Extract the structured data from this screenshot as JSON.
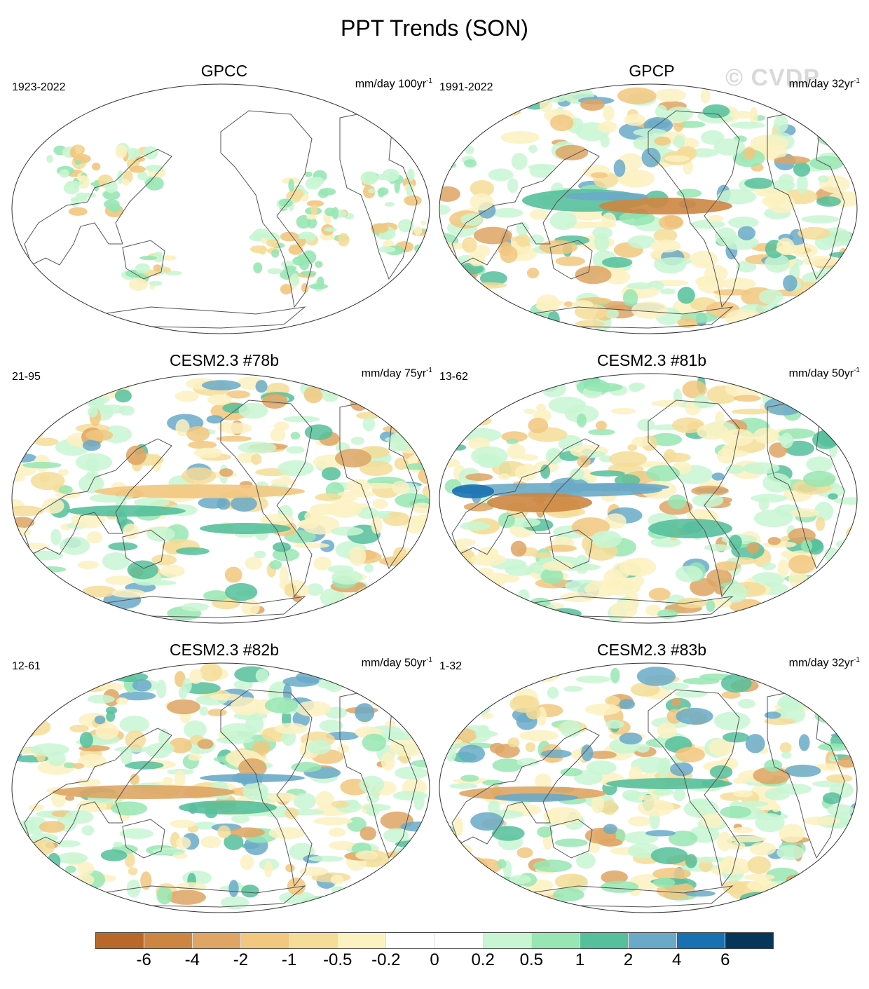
{
  "title": "PPT Trends (SON)",
  "watermark": "© CVDP",
  "panels": [
    {
      "title": "GPCC",
      "period": "1923-2022",
      "units_base": "mm/day 100yr",
      "units_exp": "-1",
      "fill": 0.25,
      "pattern": "obs_land"
    },
    {
      "title": "GPCP",
      "period": "1991-2022",
      "units_base": "mm/day 32yr",
      "units_exp": "-1",
      "fill": 0.9,
      "pattern": "gpcp"
    },
    {
      "title": "CESM2.3 #78b",
      "period": "21-95",
      "units_base": "mm/day 75yr",
      "units_exp": "-1",
      "fill": 0.85,
      "pattern": "model78"
    },
    {
      "title": "CESM2.3 #81b",
      "period": "13-62",
      "units_base": "mm/day 50yr",
      "units_exp": "-1",
      "fill": 0.9,
      "pattern": "model81"
    },
    {
      "title": "CESM2.3 #82b",
      "period": "12-61",
      "units_base": "mm/day 50yr",
      "units_exp": "-1",
      "fill": 0.9,
      "pattern": "model82"
    },
    {
      "title": "CESM2.3 #83b",
      "period": "1-32",
      "units_base": "mm/day 32yr",
      "units_exp": "-1",
      "fill": 0.9,
      "pattern": "model83"
    }
  ],
  "colorbar": {
    "colors": [
      "#b8692a",
      "#cd8642",
      "#dea564",
      "#f2c77f",
      "#f5dc98",
      "#fcf1c1",
      "#ffffff",
      "#ffffff",
      "#c8f6d2",
      "#97e6b3",
      "#55c09b",
      "#6aaac8",
      "#1871b1",
      "#06375a"
    ],
    "ticks": [
      "-6",
      "-4",
      "-2",
      "-1",
      "-0.5",
      "-0.2",
      "0",
      "0.2",
      "0.5",
      "1",
      "2",
      "4",
      "6"
    ]
  }
}
